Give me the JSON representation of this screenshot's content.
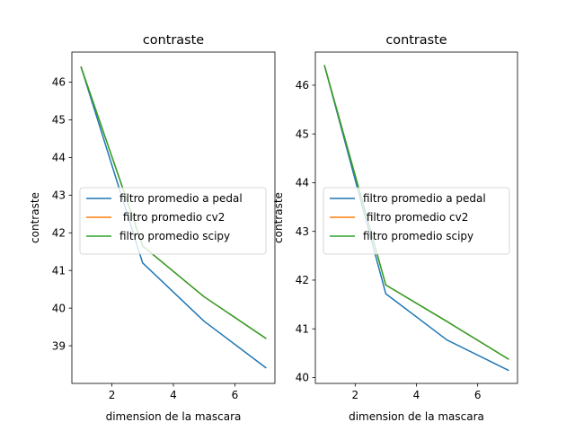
{
  "chart_data": [
    {
      "type": "line",
      "title": "contraste",
      "xlabel": "dimension de la mascara",
      "ylabel": "contraste",
      "xlim": [
        0.7,
        7.3
      ],
      "ylim": [
        38.0,
        46.8
      ],
      "xticks": [
        2,
        4,
        6
      ],
      "yticks": [
        39,
        40,
        41,
        42,
        43,
        44,
        45,
        46
      ],
      "grid": false,
      "legend_position": "center-left",
      "x": [
        1,
        3,
        5,
        7
      ],
      "series": [
        {
          "name": "filtro promedio a pedal",
          "color": "#1f77b4",
          "values": [
            46.4,
            41.2,
            39.65,
            38.42
          ]
        },
        {
          "name": " filtro promedio cv2",
          "color": "#ff7f0e",
          "values": [
            46.4,
            41.65,
            40.3,
            39.2
          ]
        },
        {
          "name": "filtro promedio scipy",
          "color": "#2ca02c",
          "values": [
            46.4,
            41.65,
            40.3,
            39.2
          ]
        }
      ]
    },
    {
      "type": "line",
      "title": "contraste",
      "xlabel": "dimension de la mascara",
      "ylabel": "contraste",
      "xlim": [
        0.7,
        7.3
      ],
      "ylim": [
        39.88,
        46.68
      ],
      "xticks": [
        2,
        4,
        6
      ],
      "yticks": [
        40,
        41,
        42,
        43,
        44,
        45,
        46
      ],
      "grid": false,
      "legend_position": "center-left",
      "x": [
        1,
        3,
        5,
        7
      ],
      "series": [
        {
          "name": "filtro promedio a pedal",
          "color": "#1f77b4",
          "values": [
            46.4,
            41.72,
            40.77,
            40.15
          ]
        },
        {
          "name": " filtro promedio cv2",
          "color": "#ff7f0e",
          "values": [
            46.4,
            41.9,
            41.15,
            40.38
          ]
        },
        {
          "name": "filtro promedio scipy",
          "color": "#2ca02c",
          "values": [
            46.4,
            41.9,
            41.15,
            40.38
          ]
        }
      ]
    }
  ]
}
